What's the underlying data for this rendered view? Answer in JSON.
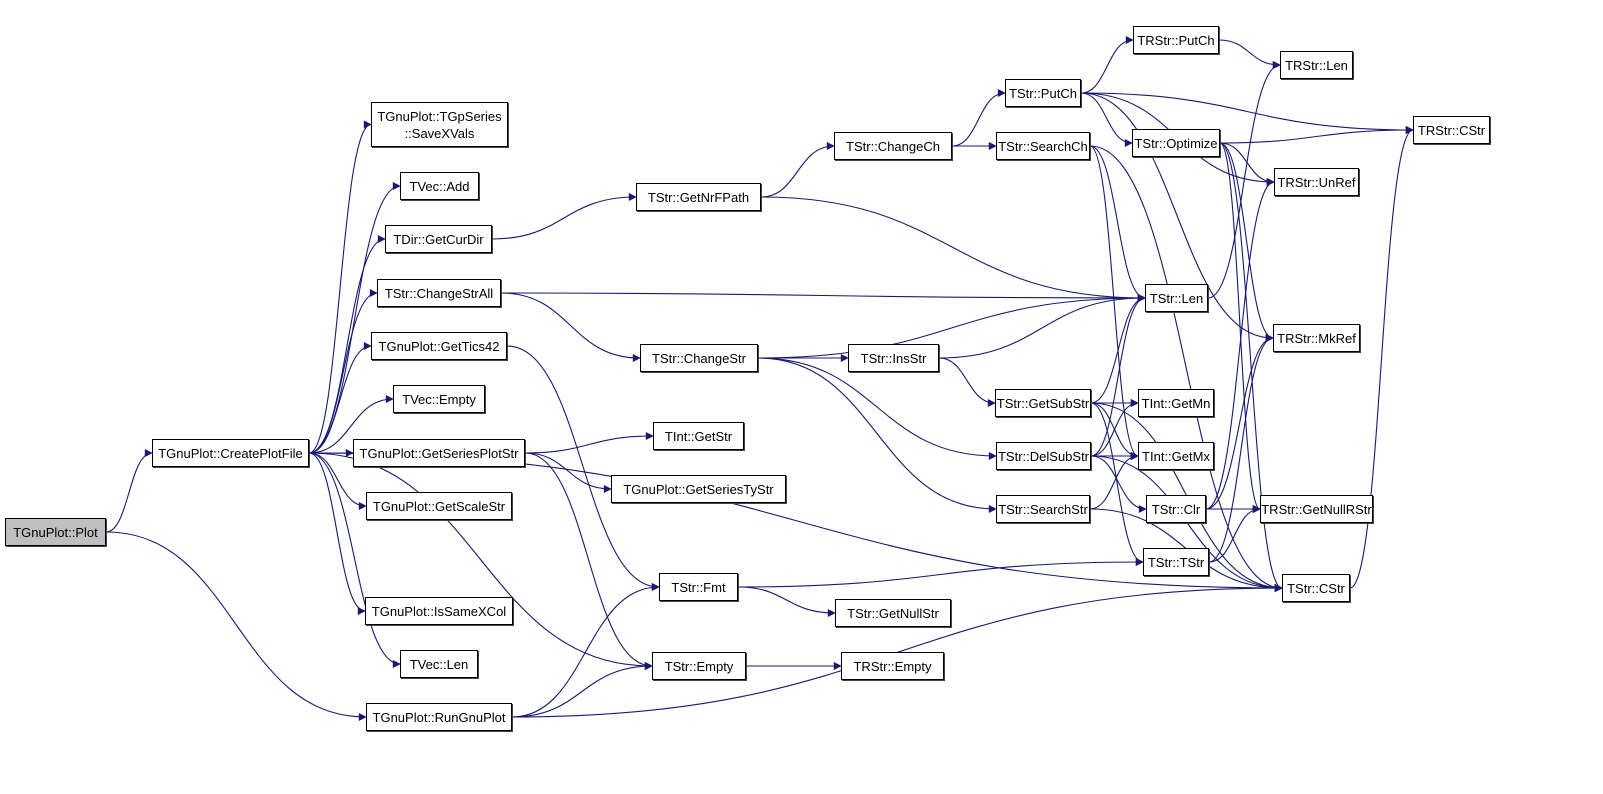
{
  "graph": {
    "edge_color": "#191970",
    "root_fill": "#bfbfbf",
    "nodes": [
      {
        "id": "plot",
        "lines": [
          "TGnuPlot::Plot"
        ],
        "root": true
      },
      {
        "id": "createPlotFile",
        "lines": [
          "TGnuPlot::CreatePlotFile"
        ]
      },
      {
        "id": "saveXVals",
        "lines": [
          "TGnuPlot::TGpSeries",
          "::SaveXVals"
        ]
      },
      {
        "id": "tvecAdd",
        "lines": [
          "TVec::Add"
        ]
      },
      {
        "id": "getCurDir",
        "lines": [
          "TDir::GetCurDir"
        ]
      },
      {
        "id": "changeStrAll",
        "lines": [
          "TStr::ChangeStrAll"
        ]
      },
      {
        "id": "getTics42",
        "lines": [
          "TGnuPlot::GetTics42"
        ]
      },
      {
        "id": "tvecEmpty",
        "lines": [
          "TVec::Empty"
        ]
      },
      {
        "id": "getSeriesPlotStr",
        "lines": [
          "TGnuPlot::GetSeriesPlotStr"
        ]
      },
      {
        "id": "getScaleStr",
        "lines": [
          "TGnuPlot::GetScaleStr"
        ]
      },
      {
        "id": "isSameXCol",
        "lines": [
          "TGnuPlot::IsSameXCol"
        ]
      },
      {
        "id": "tvecLen",
        "lines": [
          "TVec::Len"
        ]
      },
      {
        "id": "runGnuPlot",
        "lines": [
          "TGnuPlot::RunGnuPlot"
        ]
      },
      {
        "id": "getNrFPath",
        "lines": [
          "TStr::GetNrFPath"
        ]
      },
      {
        "id": "changeCh",
        "lines": [
          "TStr::ChangeCh"
        ]
      },
      {
        "id": "changeStr",
        "lines": [
          "TStr::ChangeStr"
        ]
      },
      {
        "id": "insStr",
        "lines": [
          "TStr::InsStr"
        ]
      },
      {
        "id": "tintGetStr",
        "lines": [
          "TInt::GetStr"
        ]
      },
      {
        "id": "getSeriesTyStr",
        "lines": [
          "TGnuPlot::GetSeriesTyStr"
        ]
      },
      {
        "id": "fmt",
        "lines": [
          "TStr::Fmt"
        ]
      },
      {
        "id": "getNullStr",
        "lines": [
          "TStr::GetNullStr"
        ]
      },
      {
        "id": "tstrEmpty",
        "lines": [
          "TStr::Empty"
        ]
      },
      {
        "id": "trstrEmpty",
        "lines": [
          "TRStr::Empty"
        ]
      },
      {
        "id": "putCh",
        "lines": [
          "TStr::PutCh"
        ]
      },
      {
        "id": "searchCh",
        "lines": [
          "TStr::SearchCh"
        ]
      },
      {
        "id": "trstrPutCh",
        "lines": [
          "TRStr::PutCh"
        ]
      },
      {
        "id": "optimize",
        "lines": [
          "TStr::Optimize"
        ]
      },
      {
        "id": "trstrLen",
        "lines": [
          "TRStr::Len"
        ]
      },
      {
        "id": "trstrUnRef",
        "lines": [
          "TRStr::UnRef"
        ]
      },
      {
        "id": "trstrCStr",
        "lines": [
          "TRStr::CStr"
        ]
      },
      {
        "id": "tstrLen",
        "lines": [
          "TStr::Len"
        ]
      },
      {
        "id": "trstrMkRef",
        "lines": [
          "TRStr::MkRef"
        ]
      },
      {
        "id": "getSubStr",
        "lines": [
          "TStr::GetSubStr"
        ]
      },
      {
        "id": "delSubStr",
        "lines": [
          "TStr::DelSubStr"
        ]
      },
      {
        "id": "searchStr",
        "lines": [
          "TStr::SearchStr"
        ]
      },
      {
        "id": "tintGetMn",
        "lines": [
          "TInt::GetMn"
        ]
      },
      {
        "id": "tintGetMx",
        "lines": [
          "TInt::GetMx"
        ]
      },
      {
        "id": "tstrClr",
        "lines": [
          "TStr::Clr"
        ]
      },
      {
        "id": "getNullRStr",
        "lines": [
          "TRStr::GetNullRStr"
        ]
      },
      {
        "id": "tstrTStr",
        "lines": [
          "TStr::TStr"
        ]
      },
      {
        "id": "tstrCStr",
        "lines": [
          "TStr::CStr"
        ]
      }
    ],
    "edges": [
      [
        "plot",
        "createPlotFile"
      ],
      [
        "plot",
        "runGnuPlot"
      ],
      [
        "createPlotFile",
        "saveXVals"
      ],
      [
        "createPlotFile",
        "tvecAdd"
      ],
      [
        "createPlotFile",
        "getCurDir"
      ],
      [
        "createPlotFile",
        "changeStrAll"
      ],
      [
        "createPlotFile",
        "getTics42"
      ],
      [
        "createPlotFile",
        "tvecEmpty"
      ],
      [
        "createPlotFile",
        "getSeriesPlotStr"
      ],
      [
        "createPlotFile",
        "getScaleStr"
      ],
      [
        "createPlotFile",
        "isSameXCol"
      ],
      [
        "createPlotFile",
        "tvecLen"
      ],
      [
        "createPlotFile",
        "tstrEmpty"
      ],
      [
        "createPlotFile",
        "tstrCStr"
      ],
      [
        "runGnuPlot",
        "fmt"
      ],
      [
        "runGnuPlot",
        "tstrEmpty"
      ],
      [
        "runGnuPlot",
        "tstrCStr"
      ],
      [
        "getCurDir",
        "getNrFPath"
      ],
      [
        "getNrFPath",
        "changeCh"
      ],
      [
        "getNrFPath",
        "tstrLen"
      ],
      [
        "changeCh",
        "putCh"
      ],
      [
        "changeCh",
        "searchCh"
      ],
      [
        "putCh",
        "trstrPutCh"
      ],
      [
        "putCh",
        "trstrCStr"
      ],
      [
        "putCh",
        "optimize"
      ],
      [
        "putCh",
        "trstrUnRef"
      ],
      [
        "putCh",
        "trstrMkRef"
      ],
      [
        "trstrPutCh",
        "trstrLen"
      ],
      [
        "searchCh",
        "tstrLen"
      ],
      [
        "searchCh",
        "tintGetMx"
      ],
      [
        "searchCh",
        "tstrCStr"
      ],
      [
        "optimize",
        "trstrCStr"
      ],
      [
        "optimize",
        "trstrUnRef"
      ],
      [
        "optimize",
        "trstrMkRef"
      ],
      [
        "optimize",
        "getNullRStr"
      ],
      [
        "optimize",
        "tstrCStr"
      ],
      [
        "changeStrAll",
        "tstrLen"
      ],
      [
        "changeStrAll",
        "changeStr"
      ],
      [
        "getTics42",
        "fmt"
      ],
      [
        "getSeriesPlotStr",
        "tintGetStr"
      ],
      [
        "getSeriesPlotStr",
        "getSeriesTyStr"
      ],
      [
        "getSeriesPlotStr",
        "tstrEmpty"
      ],
      [
        "changeStr",
        "tstrLen"
      ],
      [
        "changeStr",
        "insStr"
      ],
      [
        "changeStr",
        "delSubStr"
      ],
      [
        "changeStr",
        "searchStr"
      ],
      [
        "insStr",
        "tstrLen"
      ],
      [
        "insStr",
        "getSubStr"
      ],
      [
        "getSubStr",
        "tstrLen"
      ],
      [
        "getSubStr",
        "tintGetMn"
      ],
      [
        "getSubStr",
        "tintGetMx"
      ],
      [
        "getSubStr",
        "tstrCStr"
      ],
      [
        "getSubStr",
        "tstrTStr"
      ],
      [
        "delSubStr",
        "tstrLen"
      ],
      [
        "delSubStr",
        "tintGetMn"
      ],
      [
        "delSubStr",
        "tintGetMx"
      ],
      [
        "delSubStr",
        "tstrClr"
      ],
      [
        "delSubStr",
        "tstrCStr"
      ],
      [
        "searchStr",
        "tintGetMx"
      ],
      [
        "searchStr",
        "tstrCStr"
      ],
      [
        "tstrClr",
        "trstrUnRef"
      ],
      [
        "tstrClr",
        "trstrMkRef"
      ],
      [
        "tstrClr",
        "getNullRStr"
      ],
      [
        "tstrTStr",
        "trstrMkRef"
      ],
      [
        "tstrTStr",
        "getNullRStr"
      ],
      [
        "tstrLen",
        "trstrLen"
      ],
      [
        "tstrCStr",
        "trstrCStr"
      ],
      [
        "fmt",
        "tstrTStr"
      ],
      [
        "fmt",
        "getNullStr"
      ],
      [
        "tstrEmpty",
        "trstrEmpty"
      ]
    ]
  }
}
